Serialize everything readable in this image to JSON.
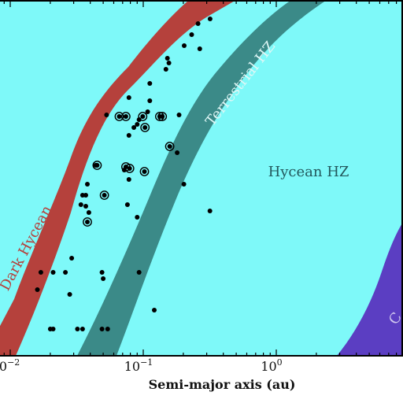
{
  "chart_data": {
    "type": "scatter",
    "title": "",
    "xlabel": "Semi-major axis (au)",
    "x_scale": "log",
    "xlim": [
      0.0085,
      10
    ],
    "x_ticks": [
      {
        "value": 0.01,
        "label": "10",
        "exp": "−2"
      },
      {
        "value": 0.1,
        "label": "10",
        "exp": "−1"
      },
      {
        "value": 1,
        "label": "10",
        "exp": "0"
      }
    ],
    "regions": [
      {
        "name": "Hycean HZ",
        "color": "#7ef9f9"
      },
      {
        "name": "Dark Hycean",
        "color": "#b5413c"
      },
      {
        "name": "Terrestrial HZ",
        "color": "#3b8a88"
      },
      {
        "name": "Cold Hycean",
        "color": "#5b3ec2",
        "visible_text": "C"
      }
    ],
    "point_color": "#000000",
    "points": [
      {
        "x": 0.318,
        "circled": false
      },
      {
        "x": 0.258,
        "circled": false
      },
      {
        "x": 0.231,
        "circled": false
      },
      {
        "x": 0.203,
        "circled": false
      },
      {
        "x": 0.266,
        "circled": false
      },
      {
        "x": 0.152,
        "circled": false
      },
      {
        "x": 0.156,
        "circled": false
      },
      {
        "x": 0.148,
        "circled": false
      },
      {
        "x": 0.112,
        "circled": false
      },
      {
        "x": 0.078,
        "circled": false
      },
      {
        "x": 0.112,
        "circled": false
      },
      {
        "x": 0.108,
        "circled": false
      },
      {
        "x": 0.053,
        "circled": false
      },
      {
        "x": 0.186,
        "circled": false
      },
      {
        "x": 0.066,
        "circled": true
      },
      {
        "x": 0.074,
        "circled": true
      },
      {
        "x": 0.099,
        "circled": true
      },
      {
        "x": 0.133,
        "circled": true
      },
      {
        "x": 0.139,
        "circled": true
      },
      {
        "x": 0.093,
        "circled": false
      },
      {
        "x": 0.09,
        "circled": false
      },
      {
        "x": 0.085,
        "circled": false
      },
      {
        "x": 0.103,
        "circled": true
      },
      {
        "x": 0.078,
        "circled": false
      },
      {
        "x": 0.158,
        "circled": true
      },
      {
        "x": 0.18,
        "circled": false
      },
      {
        "x": 0.044,
        "circled": false
      },
      {
        "x": 0.045,
        "circled": true
      },
      {
        "x": 0.074,
        "circled": true
      },
      {
        "x": 0.079,
        "circled": true
      },
      {
        "x": 0.072,
        "circled": false
      },
      {
        "x": 0.102,
        "circled": true
      },
      {
        "x": 0.078,
        "circled": false
      },
      {
        "x": 0.038,
        "circled": false
      },
      {
        "x": 0.202,
        "circled": false
      },
      {
        "x": 0.035,
        "circled": false
      },
      {
        "x": 0.037,
        "circled": false
      },
      {
        "x": 0.051,
        "circled": true
      },
      {
        "x": 0.034,
        "circled": false
      },
      {
        "x": 0.076,
        "circled": false
      },
      {
        "x": 0.037,
        "circled": false
      },
      {
        "x": 0.039,
        "circled": false
      },
      {
        "x": 0.09,
        "circled": false
      },
      {
        "x": 0.317,
        "circled": false
      },
      {
        "x": 0.038,
        "circled": true
      },
      {
        "x": 0.029,
        "circled": false
      },
      {
        "x": 0.021,
        "circled": false
      },
      {
        "x": 0.017,
        "circled": false
      },
      {
        "x": 0.026,
        "circled": false
      },
      {
        "x": 0.049,
        "circled": false
      },
      {
        "x": 0.093,
        "circled": false
      },
      {
        "x": 0.05,
        "circled": false
      },
      {
        "x": 0.016,
        "circled": false
      },
      {
        "x": 0.028,
        "circled": false
      },
      {
        "x": 0.121,
        "circled": false
      },
      {
        "x": 0.021,
        "circled": false
      },
      {
        "x": 0.032,
        "circled": false
      },
      {
        "x": 0.02,
        "circled": false
      },
      {
        "x": 0.035,
        "circled": false
      },
      {
        "x": 0.049,
        "circled": false
      },
      {
        "x": 0.054,
        "circled": false
      }
    ]
  }
}
